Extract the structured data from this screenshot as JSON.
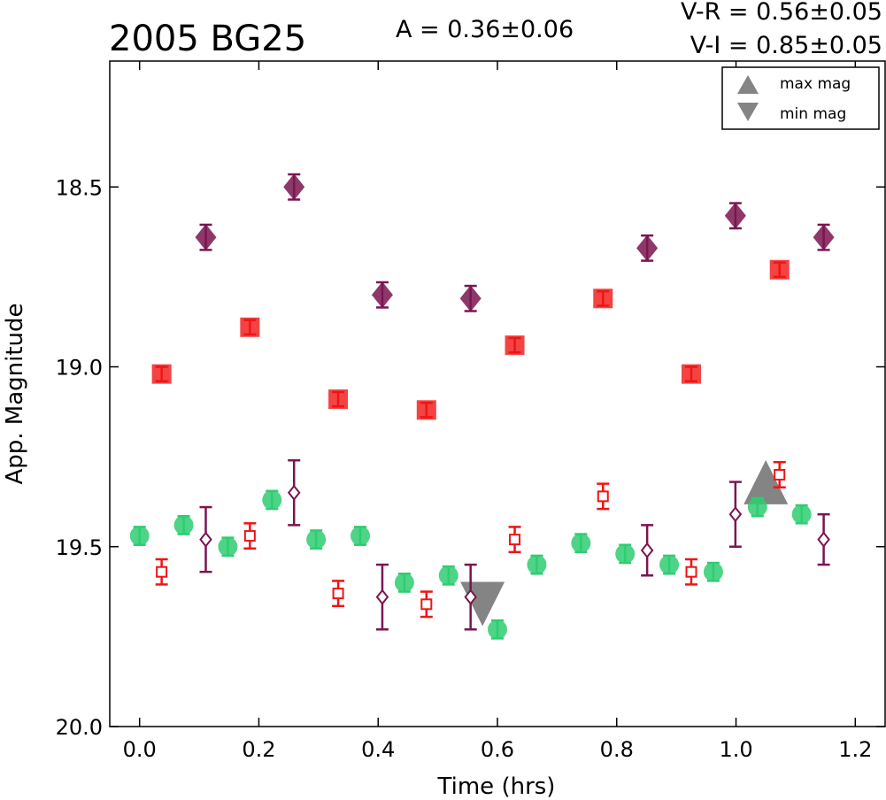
{
  "chart_data": {
    "type": "scatter",
    "title": "2005 BG25",
    "annotations": {
      "amplitude": "A  = 0.36±0.06",
      "v_r": "V-R = 0.56±0.05",
      "v_i": "V-I  = 0.85±0.05"
    },
    "xlabel": "Time (hrs)",
    "ylabel": "App. Magnitude",
    "xlim": [
      -0.05,
      1.25
    ],
    "ylim": [
      20.0,
      18.15
    ],
    "y_inverted": true,
    "xticks": [
      "0.0",
      "0.2",
      "0.4",
      "0.6",
      "0.8",
      "1.0",
      "1.2"
    ],
    "yticks": [
      "18.5",
      "19.0",
      "19.5",
      "20.0"
    ],
    "grid": false,
    "legend": {
      "placement": "top-right",
      "entries": [
        "max mag",
        "min mag"
      ]
    },
    "colors": {
      "green": "#2ecc71",
      "red": "#f01414",
      "purple": "#7a1550",
      "marker_gray": "#6e6e6e"
    },
    "series": [
      {
        "marker": "circle-filled",
        "color": "#2ecc71",
        "x": [
          0.0,
          0.074,
          0.148,
          0.222,
          0.296,
          0.37,
          0.444,
          0.518,
          0.6,
          0.666,
          0.74,
          0.814,
          0.888,
          0.962,
          1.036,
          1.11
        ],
        "y": [
          19.47,
          19.44,
          19.5,
          19.37,
          19.48,
          19.47,
          19.6,
          19.58,
          19.73,
          19.55,
          19.49,
          19.52,
          19.55,
          19.57,
          19.39,
          19.41
        ],
        "err": [
          0.025,
          0.025,
          0.025,
          0.025,
          0.025,
          0.025,
          0.025,
          0.025,
          0.025,
          0.025,
          0.025,
          0.025,
          0.025,
          0.025,
          0.025,
          0.025
        ]
      },
      {
        "marker": "square-filled",
        "color": "#f01414",
        "x": [
          0.037,
          0.185,
          0.333,
          0.481,
          0.629,
          0.777,
          0.925,
          1.073
        ],
        "y": [
          19.02,
          18.89,
          19.09,
          19.12,
          18.94,
          18.81,
          19.02,
          18.73
        ],
        "err": [
          0.02,
          0.02,
          0.02,
          0.02,
          0.02,
          0.02,
          0.02,
          0.02
        ]
      },
      {
        "marker": "diamond-filled",
        "color": "#7a1550",
        "x": [
          0.111,
          0.259,
          0.407,
          0.555,
          0.851,
          0.999,
          1.147
        ],
        "y": [
          18.64,
          18.5,
          18.8,
          18.81,
          18.67,
          18.58,
          18.64
        ],
        "err": [
          0.035,
          0.035,
          0.035,
          0.035,
          0.035,
          0.035,
          0.035
        ]
      },
      {
        "marker": "square-open",
        "color": "#f01414",
        "x": [
          0.037,
          0.185,
          0.333,
          0.481,
          0.629,
          0.777,
          0.925,
          1.073
        ],
        "y": [
          19.57,
          19.47,
          19.63,
          19.66,
          19.48,
          19.36,
          19.57,
          19.3
        ],
        "err": [
          0.035,
          0.035,
          0.035,
          0.035,
          0.035,
          0.035,
          0.035,
          0.035
        ]
      },
      {
        "marker": "diamond-open",
        "color": "#7a1550",
        "x": [
          0.111,
          0.259,
          0.407,
          0.555,
          0.851,
          0.999,
          1.147
        ],
        "y": [
          19.48,
          19.35,
          19.64,
          19.64,
          19.51,
          19.41,
          19.48
        ],
        "err": [
          0.09,
          0.09,
          0.09,
          0.09,
          0.07,
          0.09,
          0.07
        ]
      }
    ],
    "extrema": [
      {
        "label": "max mag",
        "marker": "triangle-up",
        "x": 1.05,
        "y": 19.33
      },
      {
        "label": "min mag",
        "marker": "triangle-down",
        "x": 0.575,
        "y": 19.65
      }
    ]
  }
}
